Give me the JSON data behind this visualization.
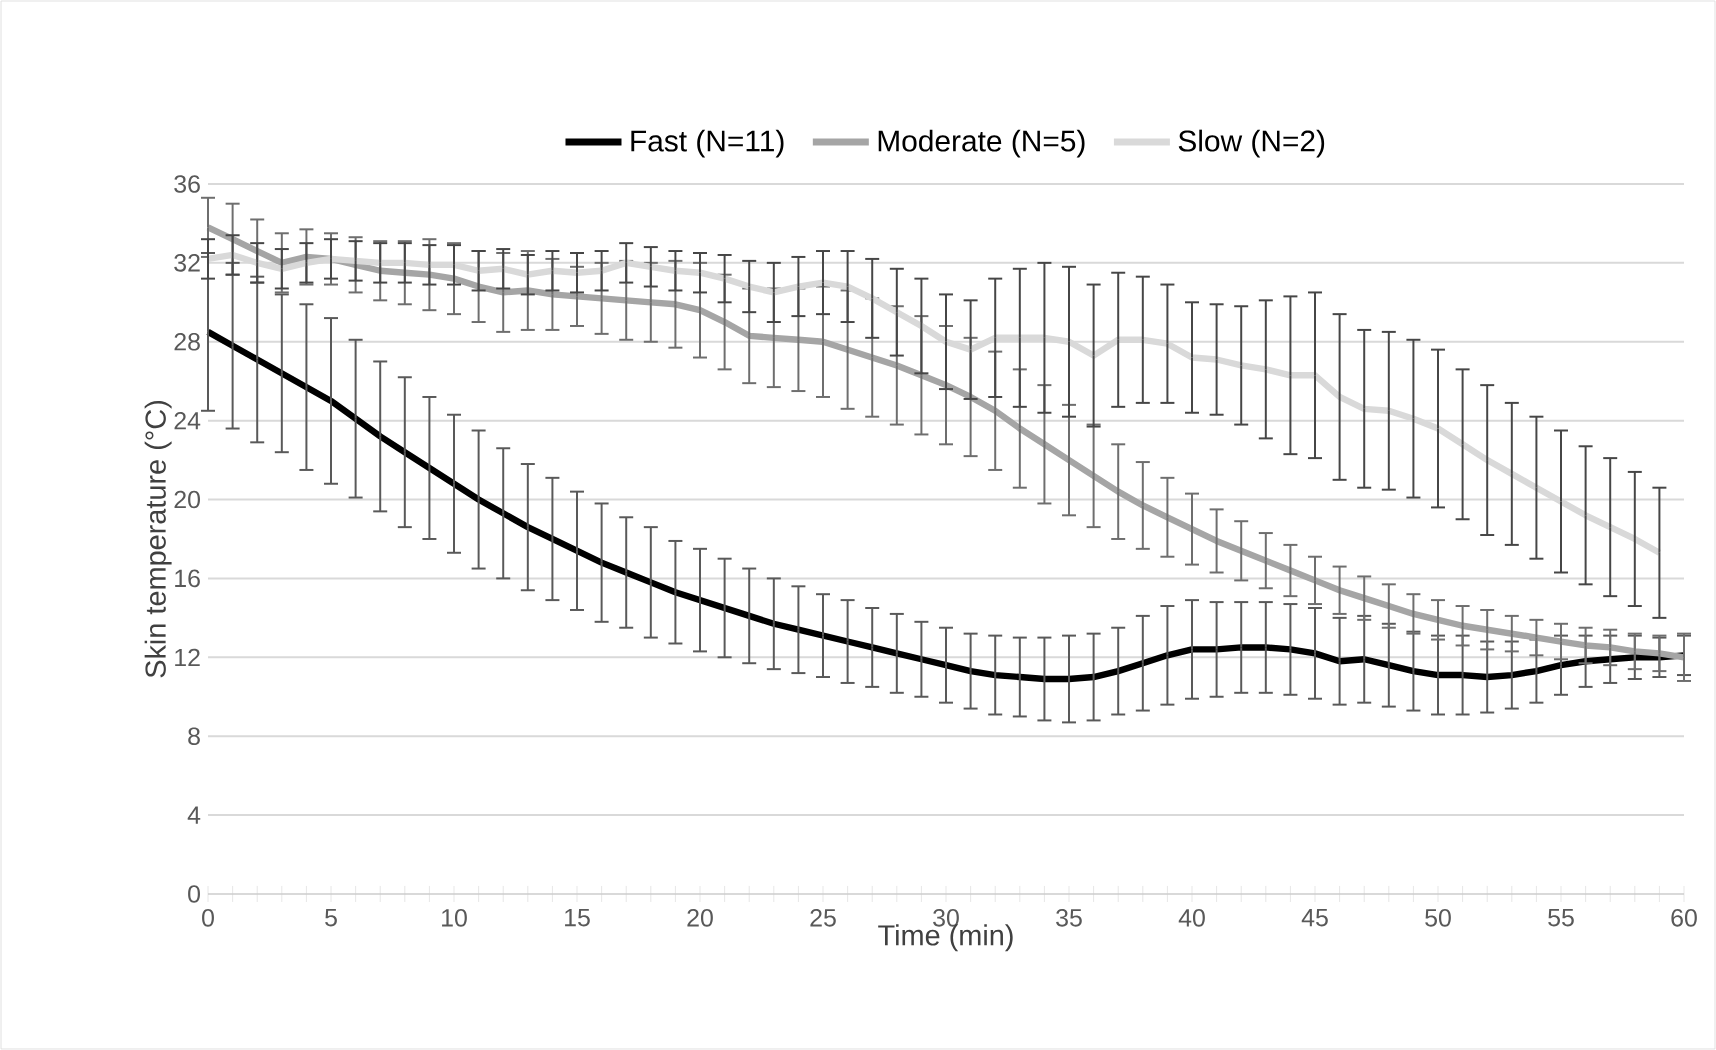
{
  "chart_data": {
    "type": "line",
    "xlabel": "Time (min)",
    "ylabel": "Skin temperature (°C)",
    "x": [
      0,
      1,
      2,
      3,
      4,
      5,
      6,
      7,
      8,
      9,
      10,
      11,
      12,
      13,
      14,
      15,
      16,
      17,
      18,
      19,
      20,
      21,
      22,
      23,
      24,
      25,
      26,
      27,
      28,
      29,
      30,
      31,
      32,
      33,
      34,
      35,
      36,
      37,
      38,
      39,
      40,
      41,
      42,
      43,
      44,
      45,
      46,
      47,
      48,
      49,
      50,
      51,
      52,
      53,
      54,
      55,
      56,
      57,
      58,
      59,
      60
    ],
    "series": [
      {
        "name": "Fast (N=11)",
        "color": "#000000",
        "values": [
          28.5,
          27.8,
          27.1,
          26.4,
          25.7,
          25.0,
          24.1,
          23.2,
          22.4,
          21.6,
          20.8,
          20.0,
          19.3,
          18.6,
          18.0,
          17.4,
          16.8,
          16.3,
          15.8,
          15.3,
          14.9,
          14.5,
          14.1,
          13.7,
          13.4,
          13.1,
          12.8,
          12.5,
          12.2,
          11.9,
          11.6,
          11.3,
          11.1,
          11.0,
          10.9,
          10.9,
          11.0,
          11.3,
          11.7,
          12.1,
          12.4,
          12.4,
          12.5,
          12.5,
          12.4,
          12.2,
          11.8,
          11.9,
          11.6,
          11.3,
          11.1,
          11.1,
          11.0,
          11.1,
          11.3,
          11.6,
          11.8,
          11.9,
          12.0,
          12.0,
          12.1
        ],
        "errors": [
          4.0,
          4.2,
          4.2,
          4.0,
          4.2,
          4.2,
          4.0,
          3.8,
          3.8,
          3.6,
          3.5,
          3.5,
          3.3,
          3.2,
          3.1,
          3.0,
          3.0,
          2.8,
          2.8,
          2.6,
          2.6,
          2.5,
          2.4,
          2.3,
          2.2,
          2.1,
          2.1,
          2.0,
          2.0,
          1.9,
          1.9,
          1.9,
          2.0,
          2.0,
          2.1,
          2.2,
          2.2,
          2.2,
          2.4,
          2.5,
          2.5,
          2.4,
          2.3,
          2.3,
          2.3,
          2.3,
          2.2,
          2.2,
          2.1,
          2.0,
          2.0,
          2.0,
          1.8,
          1.7,
          1.6,
          1.5,
          1.3,
          1.2,
          1.1,
          1.0,
          1.0
        ]
      },
      {
        "name": "Moderate (N=5)",
        "color": "#a5a5a5",
        "values": [
          33.8,
          33.2,
          32.6,
          32.0,
          32.3,
          32.2,
          31.9,
          31.6,
          31.5,
          31.4,
          31.2,
          30.8,
          30.5,
          30.6,
          30.4,
          30.3,
          30.2,
          30.1,
          30.0,
          29.9,
          29.6,
          29.0,
          28.3,
          28.2,
          28.1,
          28.0,
          27.6,
          27.2,
          26.8,
          26.3,
          25.8,
          25.2,
          24.5,
          23.6,
          22.8,
          22.0,
          21.2,
          20.4,
          19.7,
          19.1,
          18.5,
          17.9,
          17.4,
          16.9,
          16.4,
          15.9,
          15.4,
          15.0,
          14.6,
          14.2,
          13.9,
          13.6,
          13.4,
          13.2,
          13.0,
          12.8,
          12.6,
          12.5,
          12.3,
          12.2,
          12.0
        ],
        "errors": [
          1.5,
          1.8,
          1.6,
          1.5,
          1.4,
          1.3,
          1.4,
          1.5,
          1.6,
          1.8,
          1.8,
          1.8,
          2.0,
          2.0,
          1.8,
          1.5,
          1.8,
          2.0,
          2.0,
          2.2,
          2.4,
          2.4,
          2.4,
          2.5,
          2.6,
          2.8,
          3.0,
          3.0,
          3.0,
          3.0,
          3.0,
          3.0,
          3.0,
          3.0,
          3.0,
          2.8,
          2.6,
          2.4,
          2.2,
          2.0,
          1.8,
          1.6,
          1.5,
          1.4,
          1.3,
          1.2,
          1.2,
          1.1,
          1.1,
          1.0,
          1.0,
          1.0,
          1.0,
          0.9,
          0.9,
          0.9,
          0.9,
          0.9,
          0.9,
          0.9,
          1.2
        ]
      },
      {
        "name": "Slow (N=2)",
        "color": "#d9d9d9",
        "values": [
          32.2,
          32.4,
          32.0,
          31.7,
          32.0,
          32.2,
          32.1,
          32.0,
          32.0,
          31.9,
          31.9,
          31.6,
          31.7,
          31.4,
          31.6,
          31.5,
          31.6,
          32.0,
          31.8,
          31.6,
          31.5,
          31.2,
          30.8,
          30.5,
          30.8,
          31.0,
          30.8,
          30.2,
          29.5,
          28.8,
          28.0,
          27.6,
          28.2,
          28.2,
          28.2,
          28.0,
          27.3,
          28.1,
          28.1,
          27.9,
          27.2,
          27.1,
          26.8,
          26.6,
          26.3,
          26.3,
          25.2,
          24.6,
          24.5,
          24.1,
          23.6,
          22.8,
          22.0,
          21.3,
          20.6,
          19.9,
          19.2,
          18.6,
          18.0,
          17.3,
          null
        ],
        "errors": [
          1.0,
          1.0,
          1.0,
          1.0,
          1.0,
          1.0,
          1.0,
          1.0,
          1.0,
          1.0,
          1.0,
          1.0,
          1.0,
          1.0,
          1.0,
          1.0,
          1.0,
          1.0,
          1.0,
          1.0,
          1.0,
          1.2,
          1.3,
          1.5,
          1.5,
          1.6,
          1.8,
          2.0,
          2.2,
          2.4,
          2.4,
          2.5,
          3.0,
          3.5,
          3.8,
          3.8,
          3.6,
          3.4,
          3.2,
          3.0,
          2.8,
          2.8,
          3.0,
          3.5,
          4.0,
          4.2,
          4.2,
          4.0,
          4.0,
          4.0,
          4.0,
          3.8,
          3.8,
          3.6,
          3.6,
          3.6,
          3.5,
          3.5,
          3.4,
          3.3,
          null
        ]
      }
    ],
    "xlim": [
      0,
      60
    ],
    "xticks": [
      0,
      5,
      10,
      15,
      20,
      25,
      30,
      35,
      40,
      45,
      50,
      55,
      60
    ],
    "ylim": [
      0,
      36
    ],
    "yticks": [
      0,
      4,
      8,
      12,
      16,
      20,
      24,
      28,
      32,
      36
    ],
    "grid": "y",
    "legend": "top",
    "marker": "none",
    "line_style": "solid"
  }
}
